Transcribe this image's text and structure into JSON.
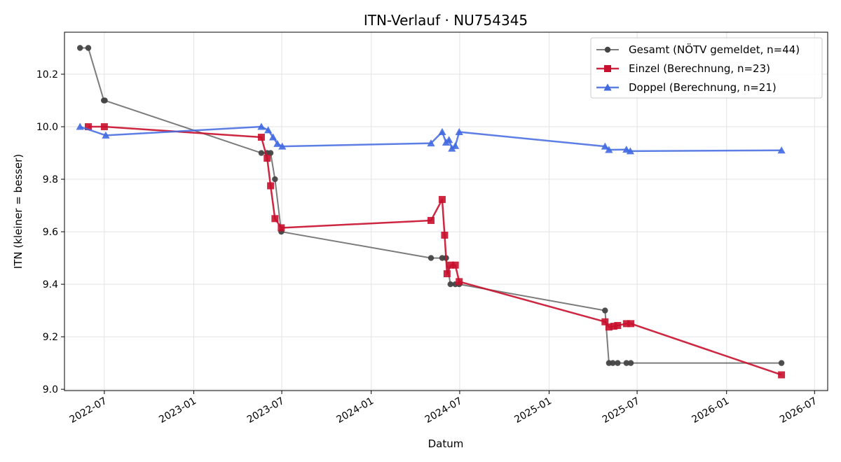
{
  "chart_data": {
    "type": "line",
    "title": "ITN-Verlauf · NU754345",
    "xlabel": "Datum",
    "ylabel": "ITN  (kleiner = besser)",
    "x_is_date": true,
    "xlim": [
      "2022-04-10",
      "2026-07-28"
    ],
    "ylim": [
      8.995,
      10.36
    ],
    "x_ticks": [
      "2022-07-01",
      "2023-01-01",
      "2023-07-01",
      "2024-01-01",
      "2024-07-01",
      "2025-01-01",
      "2025-07-01",
      "2026-01-01",
      "2026-07-01"
    ],
    "x_tick_labels": [
      "2022-07",
      "2023-01",
      "2023-07",
      "2024-01",
      "2024-07",
      "2025-01",
      "2025-07",
      "2026-01",
      "2026-07"
    ],
    "y_ticks": [
      9.0,
      9.2,
      9.4,
      9.6,
      9.8,
      10.0,
      10.2
    ],
    "y_tick_labels": [
      "9.0",
      "9.2",
      "9.4",
      "9.6",
      "9.8",
      "10.0",
      "10.2"
    ],
    "grid": true,
    "legend_position": "top-right",
    "series": [
      {
        "name": "Gesamt (NÖTV gemeldet, n=44)",
        "color": "#444444",
        "marker": "circle",
        "points": [
          [
            "2022-05-12",
            10.3
          ],
          [
            "2022-05-29",
            10.3
          ],
          [
            "2022-06-30",
            10.1
          ],
          [
            "2022-07-02",
            10.1
          ],
          [
            "2023-05-20",
            9.9
          ],
          [
            "2023-06-01",
            9.9
          ],
          [
            "2023-06-08",
            9.9
          ],
          [
            "2023-06-17",
            9.8
          ],
          [
            "2023-06-30",
            9.6
          ],
          [
            "2024-05-03",
            9.5
          ],
          [
            "2024-05-26",
            9.5
          ],
          [
            "2024-06-03",
            9.5
          ],
          [
            "2024-06-12",
            9.4
          ],
          [
            "2024-06-22",
            9.4
          ],
          [
            "2024-06-30",
            9.4
          ],
          [
            "2025-04-26",
            9.3
          ],
          [
            "2025-05-04",
            9.1
          ],
          [
            "2025-05-12",
            9.1
          ],
          [
            "2025-05-22",
            9.1
          ],
          [
            "2025-06-09",
            9.1
          ],
          [
            "2025-06-18",
            9.1
          ],
          [
            "2026-04-24",
            9.1
          ]
        ]
      },
      {
        "name": "Einzel (Berechnung, n=23)",
        "color": "#c8102e",
        "marker": "square",
        "points": [
          [
            "2022-05-29",
            10.0
          ],
          [
            "2022-07-01",
            10.0
          ],
          [
            "2023-05-20",
            9.96
          ],
          [
            "2023-06-01",
            9.88
          ],
          [
            "2023-06-08",
            9.775
          ],
          [
            "2023-06-17",
            9.65
          ],
          [
            "2023-06-30",
            9.615
          ],
          [
            "2024-05-03",
            9.643
          ],
          [
            "2024-05-26",
            9.723
          ],
          [
            "2024-05-31",
            9.587
          ],
          [
            "2024-06-05",
            9.44
          ],
          [
            "2024-06-13",
            9.473
          ],
          [
            "2024-06-22",
            9.473
          ],
          [
            "2024-06-30",
            9.41
          ],
          [
            "2025-04-26",
            9.257
          ],
          [
            "2025-05-04",
            9.237
          ],
          [
            "2025-05-14",
            9.24
          ],
          [
            "2025-05-22",
            9.243
          ],
          [
            "2025-06-09",
            9.25
          ],
          [
            "2025-06-18",
            9.25
          ],
          [
            "2026-04-24",
            9.055
          ]
        ]
      },
      {
        "name": "Doppel (Berechnung, n=21)",
        "color": "#4169e1",
        "marker": "triangle",
        "points": [
          [
            "2022-05-12",
            10.0
          ],
          [
            "2022-07-04",
            9.967
          ],
          [
            "2023-05-20",
            10.0
          ],
          [
            "2023-06-03",
            9.987
          ],
          [
            "2023-06-13",
            9.96
          ],
          [
            "2023-06-22",
            9.935
          ],
          [
            "2023-07-02",
            9.925
          ],
          [
            "2024-05-03",
            9.937
          ],
          [
            "2024-05-26",
            9.98
          ],
          [
            "2024-06-03",
            9.94
          ],
          [
            "2024-06-09",
            9.95
          ],
          [
            "2024-06-15",
            9.917
          ],
          [
            "2024-06-22",
            9.927
          ],
          [
            "2024-06-30",
            9.98
          ],
          [
            "2025-04-26",
            9.925
          ],
          [
            "2025-05-04",
            9.912
          ],
          [
            "2025-06-09",
            9.913
          ],
          [
            "2025-06-17",
            9.907
          ],
          [
            "2026-04-24",
            9.91
          ]
        ]
      }
    ]
  }
}
